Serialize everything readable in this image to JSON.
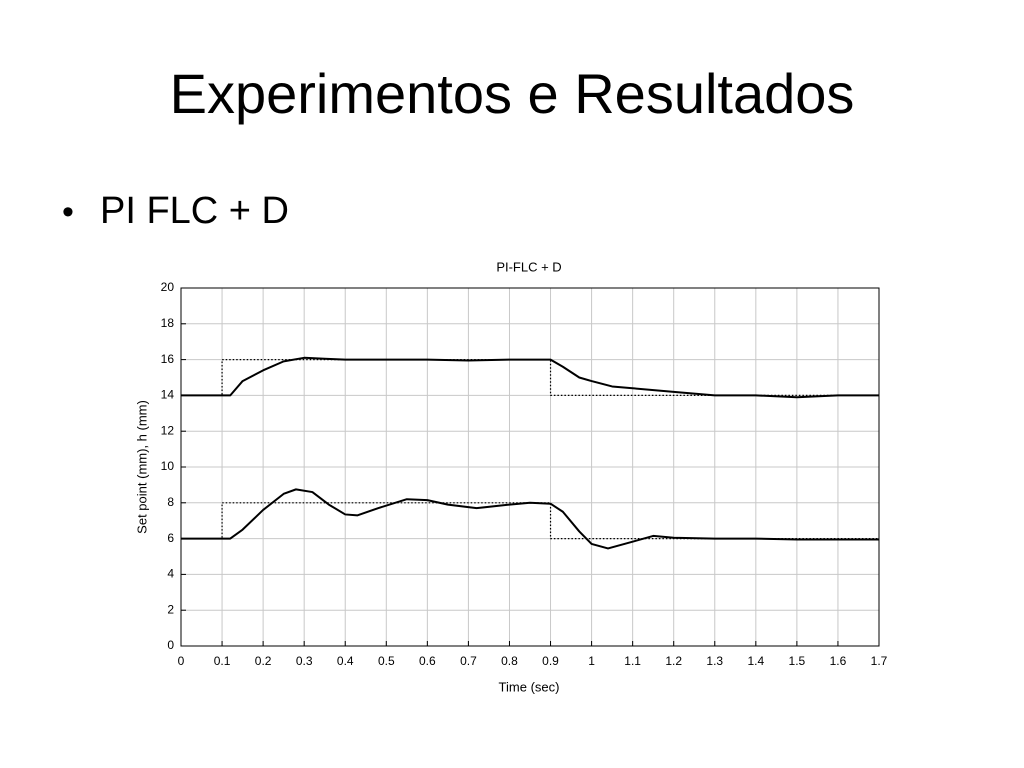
{
  "slide": {
    "title": "Experimentos e Resultados",
    "bullet": "PI FLC + D"
  },
  "chart_data": {
    "type": "line",
    "title": "PI-FLC + D",
    "x_label": "Time (sec)",
    "y_label": "Set point (mm), h (mm)",
    "xlim": [
      0,
      1.7
    ],
    "xticks": [
      0,
      0.1,
      0.2,
      0.3,
      0.4,
      0.5,
      0.6,
      0.7,
      0.8,
      0.9,
      1,
      1.1,
      1.2,
      1.3,
      1.4,
      1.5,
      1.6,
      1.7
    ],
    "ylim": [
      0,
      20
    ],
    "yticks": [
      0,
      2,
      4,
      6,
      8,
      10,
      12,
      14,
      16,
      18,
      20
    ],
    "grid": true,
    "series": [
      {
        "color": "#000000",
        "style": "dotted",
        "x": [
          0,
          0.1,
          0.1,
          0.9,
          0.9,
          1.7
        ],
        "values": [
          14,
          14,
          16,
          16,
          14,
          14
        ]
      },
      {
        "color": "#000000",
        "style": "solid",
        "x": [
          0,
          0.12,
          0.15,
          0.2,
          0.25,
          0.3,
          0.35,
          0.4,
          0.5,
          0.6,
          0.7,
          0.8,
          0.9,
          0.93,
          0.97,
          1.0,
          1.05,
          1.1,
          1.2,
          1.3,
          1.4,
          1.5,
          1.6,
          1.7
        ],
        "values": [
          14,
          14,
          14.8,
          15.4,
          15.9,
          16.1,
          16.05,
          16,
          16,
          16,
          15.95,
          16,
          16,
          15.6,
          15,
          14.8,
          14.5,
          14.4,
          14.2,
          14,
          14,
          13.9,
          14,
          14
        ]
      },
      {
        "color": "#000000",
        "style": "dotted",
        "x": [
          0,
          0.1,
          0.1,
          0.9,
          0.9,
          1.7
        ],
        "values": [
          6,
          6,
          8,
          8,
          6,
          6
        ]
      },
      {
        "color": "#000000",
        "style": "solid",
        "x": [
          0,
          0.12,
          0.15,
          0.2,
          0.25,
          0.28,
          0.32,
          0.36,
          0.4,
          0.43,
          0.48,
          0.55,
          0.6,
          0.65,
          0.72,
          0.8,
          0.85,
          0.9,
          0.93,
          0.97,
          1.0,
          1.04,
          1.08,
          1.15,
          1.2,
          1.3,
          1.4,
          1.5,
          1.6,
          1.7
        ],
        "values": [
          6,
          6,
          6.5,
          7.6,
          8.5,
          8.75,
          8.6,
          7.9,
          7.35,
          7.3,
          7.7,
          8.2,
          8.15,
          7.9,
          7.7,
          7.9,
          8,
          7.95,
          7.5,
          6.4,
          5.7,
          5.45,
          5.7,
          6.15,
          6.05,
          6,
          6,
          5.95,
          5.95,
          5.95
        ]
      }
    ]
  }
}
